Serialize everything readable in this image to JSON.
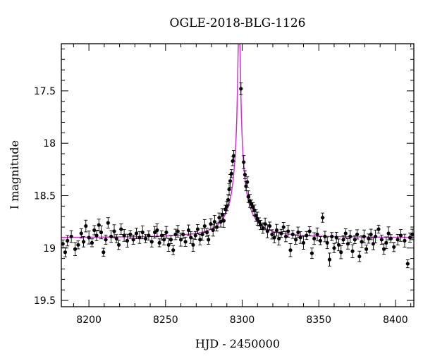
{
  "chart_data": {
    "type": "scatter",
    "title": "OGLE-2018-BLG-1126",
    "xlabel": "HJD - 2450000",
    "ylabel": "I magnitude",
    "xlim": [
      8182,
      8412
    ],
    "ylim": [
      19.56,
      17.05
    ],
    "y_inverted": true,
    "grid": false,
    "x_ticks": [
      8200,
      8250,
      8300,
      8350,
      8400
    ],
    "x_tick_labels": [
      "8200",
      "8250",
      "8300",
      "8350",
      "8400"
    ],
    "y_ticks": [
      17.5,
      18,
      18.5,
      19,
      19.5
    ],
    "y_tick_labels": [
      "17.5",
      "18",
      "18.5",
      "19",
      "19.5"
    ],
    "series": [
      {
        "kind": "points",
        "color": "#000000",
        "points": [
          [
            8183.0,
            18.96
          ],
          [
            8184.5,
            19.04
          ],
          [
            8186.0,
            18.93
          ],
          [
            8188.5,
            18.89
          ],
          [
            8191.0,
            19.01
          ],
          [
            8193.0,
            18.97
          ],
          [
            8195.0,
            18.86
          ],
          [
            8196.5,
            18.94
          ],
          [
            8198.0,
            18.79
          ],
          [
            8200.0,
            18.9
          ],
          [
            8202.0,
            18.95
          ],
          [
            8203.5,
            18.83
          ],
          [
            8205.0,
            18.88
          ],
          [
            8206.5,
            18.78
          ],
          [
            8208.0,
            18.85
          ],
          [
            8209.5,
            19.04
          ],
          [
            8211.0,
            18.92
          ],
          [
            8212.5,
            18.76
          ],
          [
            8214.5,
            18.89
          ],
          [
            8216.5,
            18.84
          ],
          [
            8218.0,
            18.91
          ],
          [
            8219.5,
            18.97
          ],
          [
            8221.0,
            18.82
          ],
          [
            8223.0,
            18.88
          ],
          [
            8225.0,
            18.93
          ],
          [
            8227.0,
            18.87
          ],
          [
            8229.0,
            18.92
          ],
          [
            8231.0,
            18.86
          ],
          [
            8233.0,
            18.9
          ],
          [
            8235.0,
            18.85
          ],
          [
            8237.0,
            18.91
          ],
          [
            8239.0,
            18.88
          ],
          [
            8241.0,
            18.94
          ],
          [
            8243.0,
            18.85
          ],
          [
            8244.5,
            18.83
          ],
          [
            8246.0,
            18.95
          ],
          [
            8247.5,
            18.88
          ],
          [
            8249.0,
            18.92
          ],
          [
            8250.5,
            18.85
          ],
          [
            8252.0,
            18.97
          ],
          [
            8253.5,
            18.92
          ],
          [
            8255.0,
            19.02
          ],
          [
            8256.5,
            18.87
          ],
          [
            8258.0,
            18.84
          ],
          [
            8260.0,
            18.92
          ],
          [
            8261.5,
            18.87
          ],
          [
            8263.0,
            18.94
          ],
          [
            8265.0,
            18.83
          ],
          [
            8266.5,
            18.9
          ],
          [
            8268.0,
            18.97
          ],
          [
            8269.5,
            18.88
          ],
          [
            8271.0,
            18.82
          ],
          [
            8272.5,
            18.92
          ],
          [
            8274.0,
            18.87
          ],
          [
            8275.5,
            18.79
          ],
          [
            8277.0,
            18.85
          ],
          [
            8278.0,
            18.92
          ],
          [
            8279.5,
            18.77
          ],
          [
            8281.0,
            18.83
          ],
          [
            8282.0,
            18.75
          ],
          [
            8283.5,
            18.8
          ],
          [
            8285.0,
            18.71
          ],
          [
            8286.0,
            18.75
          ],
          [
            8287.0,
            18.68
          ],
          [
            8288.0,
            18.74
          ],
          [
            8289.0,
            18.63
          ],
          [
            8290.0,
            18.6
          ],
          [
            8290.8,
            18.54
          ],
          [
            8291.5,
            18.44
          ],
          [
            8292.2,
            18.36
          ],
          [
            8293.0,
            18.29
          ],
          [
            8293.8,
            18.17
          ],
          [
            8294.5,
            18.12
          ],
          [
            8299.2,
            17.48
          ],
          [
            8301.0,
            18.18
          ],
          [
            8301.8,
            18.3
          ],
          [
            8302.5,
            18.41
          ],
          [
            8303.3,
            18.37
          ],
          [
            8304.0,
            18.51
          ],
          [
            8305.0,
            18.55
          ],
          [
            8306.0,
            18.58
          ],
          [
            8307.0,
            18.61
          ],
          [
            8308.0,
            18.64
          ],
          [
            8309.0,
            18.69
          ],
          [
            8310.0,
            18.72
          ],
          [
            8311.0,
            18.75
          ],
          [
            8312.0,
            18.78
          ],
          [
            8313.5,
            18.81
          ],
          [
            8315.0,
            18.77
          ],
          [
            8316.5,
            18.84
          ],
          [
            8318.0,
            18.79
          ],
          [
            8319.5,
            18.87
          ],
          [
            8321.0,
            18.9
          ],
          [
            8322.5,
            18.83
          ],
          [
            8324.0,
            18.91
          ],
          [
            8325.5,
            18.86
          ],
          [
            8327.0,
            18.8
          ],
          [
            8328.5,
            18.89
          ],
          [
            8330.0,
            18.84
          ],
          [
            8331.5,
            19.02
          ],
          [
            8333.0,
            18.87
          ],
          [
            8335.0,
            18.92
          ],
          [
            8336.5,
            18.85
          ],
          [
            8338.0,
            18.9
          ],
          [
            8340.0,
            18.95
          ],
          [
            8342.0,
            18.88
          ],
          [
            8344.0,
            18.84
          ],
          [
            8345.5,
            19.05
          ],
          [
            8347.0,
            18.91
          ],
          [
            8349.0,
            18.87
          ],
          [
            8351.0,
            18.93
          ],
          [
            8352.5,
            18.71
          ],
          [
            8354.0,
            18.89
          ],
          [
            8355.5,
            18.95
          ],
          [
            8357.0,
            19.11
          ],
          [
            8358.5,
            18.89
          ],
          [
            8360.0,
            19.0
          ],
          [
            8361.5,
            18.9
          ],
          [
            8363.0,
            18.97
          ],
          [
            8364.5,
            19.04
          ],
          [
            8366.0,
            18.92
          ],
          [
            8367.5,
            18.86
          ],
          [
            8369.0,
            18.96
          ],
          [
            8370.5,
            18.89
          ],
          [
            8372.0,
            19.03
          ],
          [
            8373.5,
            18.92
          ],
          [
            8375.0,
            18.87
          ],
          [
            8376.5,
            19.08
          ],
          [
            8378.0,
            18.94
          ],
          [
            8379.5,
            18.89
          ],
          [
            8381.0,
            19.01
          ],
          [
            8382.5,
            18.91
          ],
          [
            8384.0,
            18.87
          ],
          [
            8385.5,
            18.96
          ],
          [
            8387.0,
            18.89
          ],
          [
            8389.0,
            18.82
          ],
          [
            8391.0,
            18.92
          ],
          [
            8392.5,
            19.01
          ],
          [
            8394.0,
            18.95
          ],
          [
            8395.5,
            18.86
          ],
          [
            8397.0,
            18.91
          ],
          [
            8399.0,
            18.99
          ],
          [
            8401.5,
            18.92
          ],
          [
            8403.5,
            18.88
          ],
          [
            8406.0,
            18.93
          ],
          [
            8408.0,
            19.15
          ],
          [
            8409.5,
            18.9
          ],
          [
            8411.0,
            18.87
          ]
        ]
      },
      {
        "kind": "model-curve",
        "color": "#cc33cc",
        "baseline": 18.9,
        "peak_time": 8298.0,
        "peak_magnitude": 17.05,
        "model_points": [
          [
            8182,
            18.898
          ],
          [
            8200,
            18.897
          ],
          [
            8220,
            18.894
          ],
          [
            8240,
            18.89
          ],
          [
            8250,
            18.885
          ],
          [
            8260,
            18.876
          ],
          [
            8270,
            18.861
          ],
          [
            8275,
            18.846
          ],
          [
            8280,
            18.818
          ],
          [
            8284,
            18.781
          ],
          [
            8287,
            18.729
          ],
          [
            8289,
            18.68
          ],
          [
            8291,
            18.603
          ],
          [
            8292,
            18.548
          ],
          [
            8293,
            18.472
          ],
          [
            8294,
            18.365
          ],
          [
            8295,
            18.209
          ],
          [
            8295.5,
            18.098
          ],
          [
            8296,
            17.951
          ],
          [
            8296.5,
            17.749
          ],
          [
            8297,
            17.432
          ],
          [
            8297.3,
            17.162
          ],
          [
            8297.5,
            17.05
          ],
          [
            8298.5,
            17.05
          ],
          [
            8298.7,
            17.162
          ],
          [
            8299,
            17.432
          ],
          [
            8299.5,
            17.749
          ],
          [
            8300,
            17.951
          ],
          [
            8300.5,
            18.098
          ],
          [
            8301,
            18.209
          ],
          [
            8302,
            18.365
          ],
          [
            8303,
            18.472
          ],
          [
            8304,
            18.548
          ],
          [
            8305,
            18.603
          ],
          [
            8307,
            18.68
          ],
          [
            8309,
            18.729
          ],
          [
            8312,
            18.781
          ],
          [
            8316,
            18.818
          ],
          [
            8321,
            18.846
          ],
          [
            8326,
            18.861
          ],
          [
            8336,
            18.876
          ],
          [
            8346,
            18.885
          ],
          [
            8356,
            18.89
          ],
          [
            8376,
            18.894
          ],
          [
            8396,
            18.897
          ],
          [
            8412,
            18.898
          ]
        ]
      }
    ]
  }
}
